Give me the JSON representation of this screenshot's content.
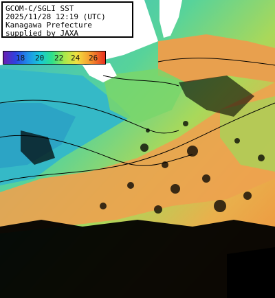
{
  "map": {
    "satellite_label": "GCOM-C/SGLI SST",
    "timestamp": "2025/11/28 12:19 (UTC)",
    "region": "Kanagawa Prefecture",
    "credit": "supplied by JAXA"
  },
  "legend": {
    "ticks": [
      "18",
      "20",
      "22",
      "24",
      "26"
    ],
    "colors": [
      "#6a1fb0",
      "#2d43e0",
      "#1f8fe8",
      "#18c8d8",
      "#2ee08a",
      "#a8e84a",
      "#f0e040",
      "#f5a030",
      "#e83020"
    ]
  },
  "palette": {
    "land": "#ffffff",
    "cloud": "#000000",
    "cool_water": "#2fc6b5",
    "mid_water": "#7fdc55",
    "warm_water": "#f0a050"
  }
}
